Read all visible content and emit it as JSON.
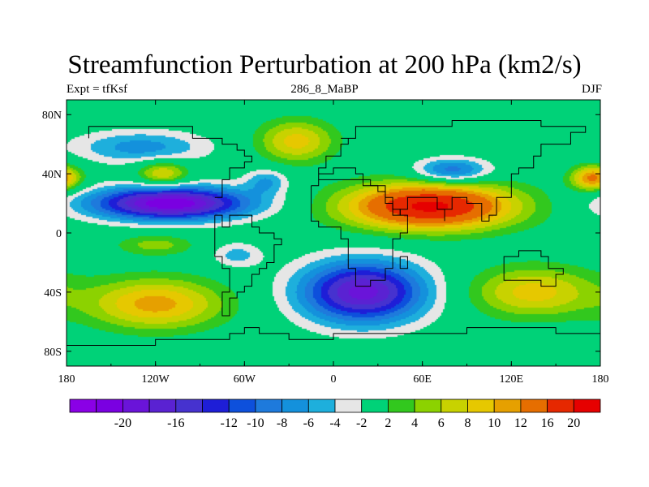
{
  "title": "Streamfunction Perturbation at 200 hPa (km2/s)",
  "subtitle": {
    "left": "Expt = tfKsf",
    "center": "286_8_MaBP",
    "right": "DJF"
  },
  "map": {
    "projection": "cylindrical-equidistant",
    "lon_range": [
      -180,
      180
    ],
    "lat_range": [
      -90,
      90
    ],
    "lat_ticks": [
      {
        "value": 80,
        "label": "80N"
      },
      {
        "value": 40,
        "label": "40N"
      },
      {
        "value": 0,
        "label": "0"
      },
      {
        "value": -40,
        "label": "40S"
      },
      {
        "value": -80,
        "label": "80S"
      }
    ],
    "lon_ticks": [
      {
        "value": -180,
        "label": "180"
      },
      {
        "value": -120,
        "label": "120W"
      },
      {
        "value": -60,
        "label": "60W"
      },
      {
        "value": 0,
        "label": "0"
      },
      {
        "value": 60,
        "label": "60E"
      },
      {
        "value": 120,
        "label": "120E"
      },
      {
        "value": 180,
        "label": "180"
      }
    ],
    "features": [
      {
        "name": "Pacific tropical low",
        "lon": -110,
        "lat": 20,
        "peak": -22,
        "sx": 38,
        "sy": 8
      },
      {
        "name": "Asian high",
        "lon": 65,
        "lat": 18,
        "peak": 21,
        "sx": 40,
        "sy": 11
      },
      {
        "name": "South Atlantic low",
        "lon": 20,
        "lat": -40,
        "peak": -19,
        "sx": 30,
        "sy": 15
      },
      {
        "name": "North Pacific low",
        "lon": -130,
        "lat": 58,
        "peak": -7,
        "sx": 32,
        "sy": 8
      },
      {
        "name": "North Atlantic high",
        "lon": -25,
        "lat": 62,
        "peak": 9,
        "sx": 18,
        "sy": 10
      },
      {
        "name": "East Asian low",
        "lon": 80,
        "lat": 42,
        "peak": -10,
        "sx": 18,
        "sy": 6
      },
      {
        "name": "Pacific mid-lat high",
        "lon": -115,
        "lat": 40,
        "peak": 9,
        "sx": 12,
        "sy": 6
      },
      {
        "name": "Southern Pacific high",
        "lon": -120,
        "lat": -48,
        "peak": 11,
        "sx": 32,
        "sy": 12
      },
      {
        "name": "Southern Indian Ocean high",
        "lon": 135,
        "lat": -40,
        "peak": 9,
        "sx": 30,
        "sy": 12
      },
      {
        "name": "Dateline high",
        "lon": 175,
        "lat": 37,
        "peak": 13,
        "sx": 10,
        "sy": 6
      },
      {
        "name": "Subtropical South Pacific high",
        "lon": -120,
        "lat": -8,
        "peak": 5,
        "sx": 18,
        "sy": 5
      },
      {
        "name": "South Pacific low",
        "lon": -65,
        "lat": -15,
        "peak": -5,
        "sx": 12,
        "sy": 6
      },
      {
        "name": "North Atlantic low",
        "lon": -45,
        "lat": 35,
        "peak": -6,
        "sx": 10,
        "sy": 6
      }
    ]
  },
  "colorbar": {
    "levels": [
      -22,
      -20,
      -18,
      -16,
      -14,
      -12,
      -10,
      -8,
      -6,
      -4,
      -2,
      2,
      4,
      6,
      8,
      10,
      12,
      16,
      20
    ],
    "colors": [
      "#8A00E6",
      "#7A00E1",
      "#6A14D9",
      "#5A22D2",
      "#4632CF",
      "#1E1ED7",
      "#0D50DC",
      "#1E7ADC",
      "#1491DC",
      "#1EAFDC",
      "#E6E6E6",
      "#00D278",
      "#32C81E",
      "#8CD200",
      "#C8D200",
      "#E6C800",
      "#E6A000",
      "#E66E00",
      "#E62800",
      "#E60000"
    ],
    "labels": [
      "-20",
      "-16",
      "-12",
      "-10",
      "-8",
      "-6",
      "-4",
      "-2",
      "2",
      "4",
      "6",
      "8",
      "10",
      "12",
      "16",
      "20"
    ]
  }
}
